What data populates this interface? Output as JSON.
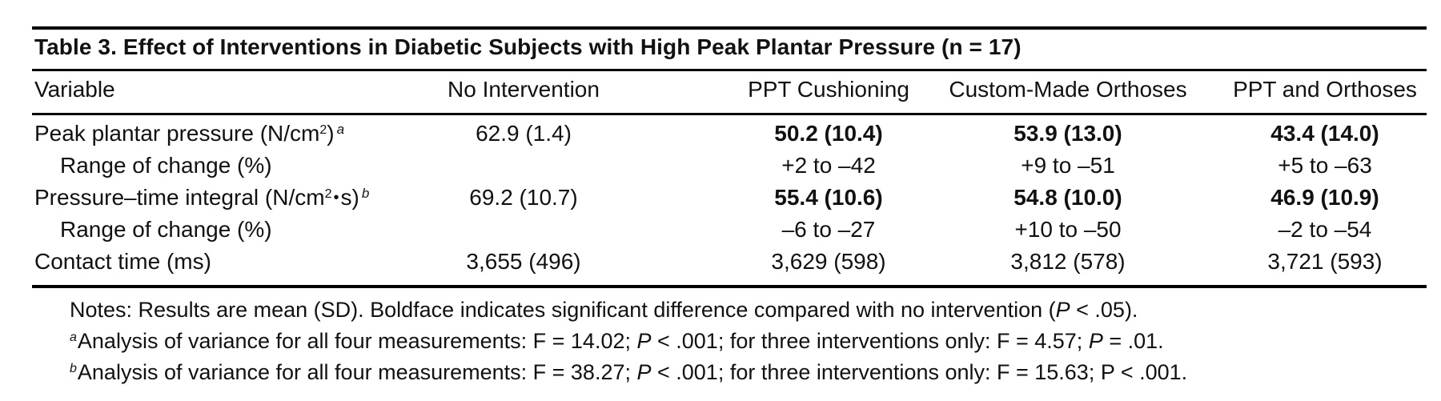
{
  "table": {
    "title": "Table 3. Effect of Interventions in Diabetic Subjects with High Peak Plantar Pressure (n = 17)",
    "headers": [
      "Variable",
      "No Intervention",
      "PPT Cushioning",
      "Custom-Made Orthoses",
      "PPT and Orthoses"
    ],
    "rows": [
      {
        "label": "Peak plantar pressure (N/cm",
        "label_sup": "2",
        "label_close": ")",
        "footnote": "a",
        "no_intervention": "62.9 (1.4)",
        "ppt": "50.2 (10.4)",
        "orthoses": "53.9 (13.0)",
        "ppt_orthoses": "43.4 (14.0)"
      },
      {
        "label": "Range of change (%)",
        "no_intervention": "",
        "ppt": "+2 to –42",
        "orthoses": "+9 to –51",
        "ppt_orthoses": "+5 to –63"
      },
      {
        "label": "Pressure–time integral (N/cm",
        "label_sup": "2",
        "label_dot": "•",
        "label_close": "s)",
        "footnote": "b",
        "no_intervention": "69.2 (10.7)",
        "ppt": "55.4 (10.6)",
        "orthoses": "54.8 (10.0)",
        "ppt_orthoses": "46.9 (10.9)"
      },
      {
        "label": "Range of change (%)",
        "no_intervention": "",
        "ppt": "–6 to –27",
        "orthoses": "+10 to –50",
        "ppt_orthoses": "–2 to –54"
      },
      {
        "label": "Contact time (ms)",
        "no_intervention": "3,655 (496)",
        "ppt": "3,629 (598)",
        "orthoses": "3,812 (578)",
        "ppt_orthoses": "3,721 (593)"
      }
    ],
    "notes": {
      "line1_a": "Notes: Results are mean (SD). Boldface indicates significant difference compared with no intervention (",
      "line1_p": "P",
      "line1_b": " < .05).",
      "fn_a_mark": "a",
      "fn_a_1": "Analysis of variance for all four measurements: F = 14.02; ",
      "fn_a_p1": "P",
      "fn_a_2": " < .001; for three interventions only: F = 4.57; ",
      "fn_a_p2": "P",
      "fn_a_3": " = .01.",
      "fn_b_mark": "b",
      "fn_b_1": "Analysis of variance for all four measurements: F = 38.27; ",
      "fn_b_p1": "P",
      "fn_b_2": " < .001; for three interventions only: F = 15.63; P < .001."
    }
  }
}
